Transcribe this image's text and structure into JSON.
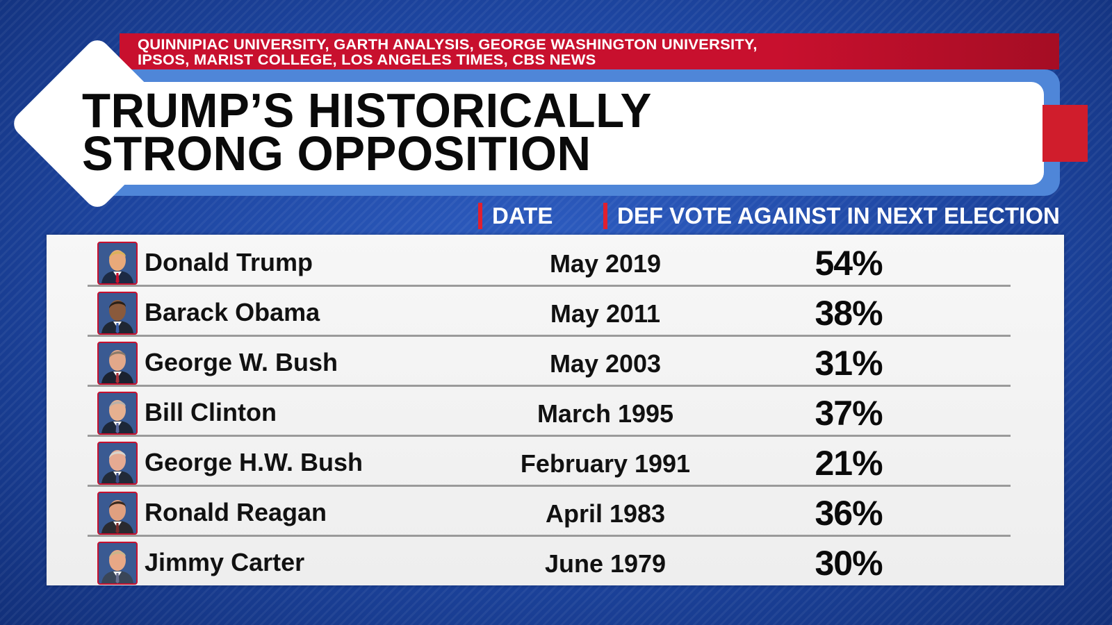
{
  "source": {
    "line1": "QUINNIPIAC UNIVERSITY, GARTH ANALYSIS, GEORGE WASHINGTON UNIVERSITY,",
    "line2": "IPSOS, MARIST COLLEGE, LOS ANGELES TIMES, CBS NEWS"
  },
  "title": {
    "line1": "TRUMP’S HISTORICALLY",
    "line2": "STRONG OPPOSITION"
  },
  "columns": {
    "date": "DATE",
    "vote": "DEF VOTE AGAINST IN NEXT ELECTION"
  },
  "colors": {
    "accent_red": "#c8102e",
    "background_blue": "#1f47a3",
    "title_frame_blue": "#4f86d8"
  },
  "rows": [
    {
      "name": "Donald Trump",
      "date": "May 2019",
      "pct": "54%",
      "suit": "#1d2a44",
      "tie": "#c8102e",
      "hair": "#d9b25a",
      "skin": "#e9a97a"
    },
    {
      "name": "Barack Obama",
      "date": "May 2011",
      "pct": "38%",
      "suit": "#1f2733",
      "tie": "#3b5fa8",
      "hair": "#2a2018",
      "skin": "#8a5a3c"
    },
    {
      "name": "George W. Bush",
      "date": "May 2003",
      "pct": "31%",
      "suit": "#1b2230",
      "tie": "#a8323a",
      "hair": "#8a7a6a",
      "skin": "#e2a88a"
    },
    {
      "name": "Bill Clinton",
      "date": "March 1995",
      "pct": "37%",
      "suit": "#1d2738",
      "tie": "#5a6aa0",
      "hair": "#b8b0a8",
      "skin": "#e6b090"
    },
    {
      "name": "George H.W. Bush",
      "date": "February 1991",
      "pct": "21%",
      "suit": "#222a38",
      "tie": "#3c4f88",
      "hair": "#d8d4cc",
      "skin": "#e6aa92"
    },
    {
      "name": "Ronald Reagan",
      "date": "April 1983",
      "pct": "36%",
      "suit": "#2a2a30",
      "tie": "#7a2a2a",
      "hair": "#3a2a20",
      "skin": "#e0a080"
    },
    {
      "name": "Jimmy Carter",
      "date": "June 1979",
      "pct": "30%",
      "suit": "#3a4658",
      "tie": "#6a7090",
      "hair": "#c8b48a",
      "skin": "#e8a886"
    }
  ]
}
